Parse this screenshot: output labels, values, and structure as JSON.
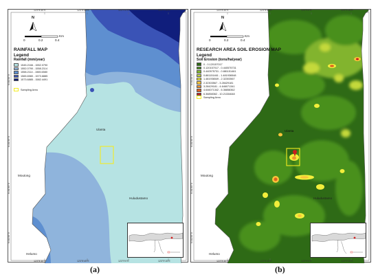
{
  "panel_a": {
    "title": "RAINFALL MAP",
    "legend_title": "Legend",
    "legend_subtitle": "Rainfall (mm/year)",
    "legend_items": [
      {
        "label": "1545.2166 - 1552.0790",
        "color": "#b6e3e3"
      },
      {
        "label": "1552.0790 - 1558.2114",
        "color": "#8fb4dc"
      },
      {
        "label": "1558.2114 - 1565.6580",
        "color": "#5e8fd0"
      },
      {
        "label": "1565.6580 - 1573.6885",
        "color": "#3a53b6"
      },
      {
        "label": "1573.6885 - 1582.4491",
        "color": "#101e7c"
      }
    ],
    "sampling_label": "Sampling Area",
    "places": {
      "north": "Ulanta",
      "west": "Moutong",
      "east": "Huludustamo",
      "south": "Helumo"
    },
    "coords_top": [
      "123°8'30\"E",
      "123°8'45\"E",
      "123°9'0\"E",
      "123°9'15\"E"
    ],
    "coords_bottom": [
      "123°8'30\"E",
      "123°8'45\"E",
      "123°9'0\"E",
      "123°9'15\"E"
    ],
    "coords_left": [
      "N.81'55°0",
      "N.81'55°0",
      "N.81'55°0",
      "N.81'55°0"
    ]
  },
  "panel_b": {
    "title": "RESEARCH AREA SOIL EROSION MAP",
    "legend_title": "Legend",
    "legend_subtitle": "Soil Erosion (tons/ha/year)",
    "legend_items": [
      {
        "label": "0 - 0.120157017",
        "color": "#2e6a16"
      },
      {
        "label": "0.120157017 - 0.440575731",
        "color": "#48901f"
      },
      {
        "label": "0.440575731 - 0.881151461",
        "color": "#82b42e"
      },
      {
        "label": "0.881151461 - 1.481936548",
        "color": "#c4d93a"
      },
      {
        "label": "1.481936549 - 2.32303567",
        "color": "#f2ee3b"
      },
      {
        "label": "2.32303567 - 3.28429181",
        "color": "#f8c43a"
      },
      {
        "label": "3.28429181 - 4.646071341",
        "color": "#f0952e"
      },
      {
        "label": "4.646071342 - 6.36858362",
        "color": "#e0601f"
      },
      {
        "label": "6.36858362 - 10.21334648",
        "color": "#cc1d1d"
      }
    ],
    "sampling_label": "Sampling Area",
    "places": {
      "north": "Ulanta",
      "west": "Moutong",
      "east": "Huludustamo",
      "south": "Helumo"
    },
    "coords_top": [
      "123°8'30\"E",
      "123°8'45\"E",
      "123°9'0\"E",
      "123°9'15\"E"
    ],
    "coords_bottom": [
      "123°8'30\"E",
      "123°8'45\"E",
      "123°9'0\"E",
      "123°9'15\"E"
    ],
    "coords_left": [
      "N.81'55°0",
      "N.81'55°0",
      "N.81'55°0",
      "N.81'55°0"
    ]
  },
  "north_label": "N",
  "scale_bar": {
    "unit": "Km",
    "ticks": [
      "0",
      "0.2",
      "0.4"
    ]
  },
  "captions": {
    "a": "(a)",
    "b": "(b)"
  }
}
